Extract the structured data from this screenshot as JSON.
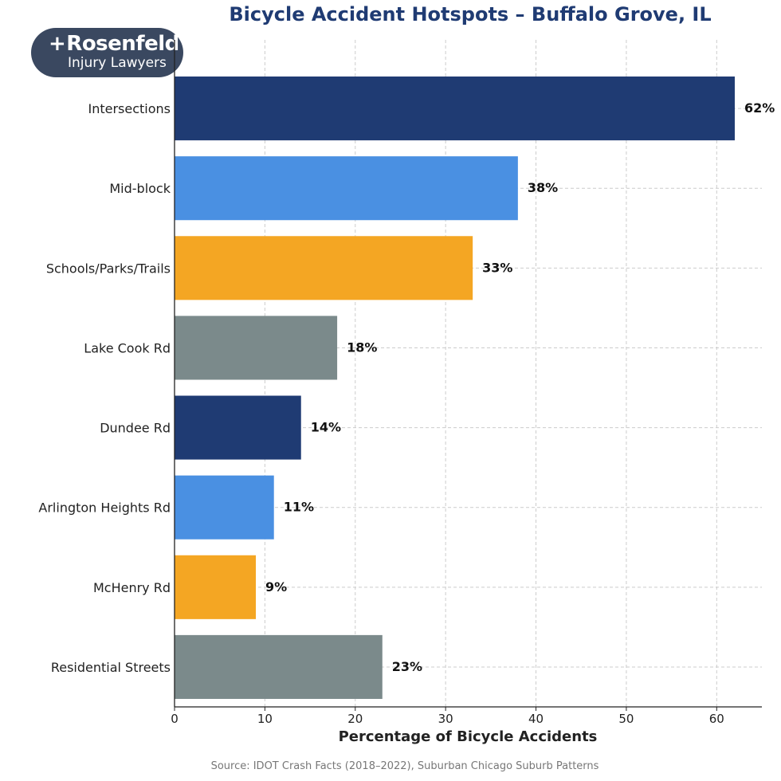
{
  "chart_data": {
    "type": "bar",
    "orientation": "horizontal",
    "title": "Bicycle Accident Hotspots – Buffalo Grove, IL",
    "xlabel": "Percentage of Bicycle Accidents",
    "ylabel": "",
    "xlim": [
      0,
      65
    ],
    "xticks": [
      0,
      10,
      20,
      30,
      40,
      50,
      60
    ],
    "grid": true,
    "categories": [
      "Intersections",
      "Mid-block",
      "Schools/Parks/Trails",
      "Lake Cook Rd",
      "Dundee Rd",
      "Arlington Heights Rd",
      "McHenry Rd",
      "Residential Streets"
    ],
    "values": [
      62,
      38,
      33,
      18,
      14,
      11,
      9,
      23
    ],
    "value_labels": [
      "62%",
      "38%",
      "33%",
      "18%",
      "14%",
      "11%",
      "9%",
      "23%"
    ],
    "colors": [
      "#1f3b73",
      "#4a90e2",
      "#f4a623",
      "#7b8a8b",
      "#1f3b73",
      "#4a90e2",
      "#f4a623",
      "#7b8a8b"
    ]
  },
  "logo": {
    "brand": "Rosenfeld",
    "subtitle": "Injury Lawyers"
  },
  "source": "Source: IDOT Crash Facts (2018–2022), Suburban Chicago Suburb Patterns"
}
